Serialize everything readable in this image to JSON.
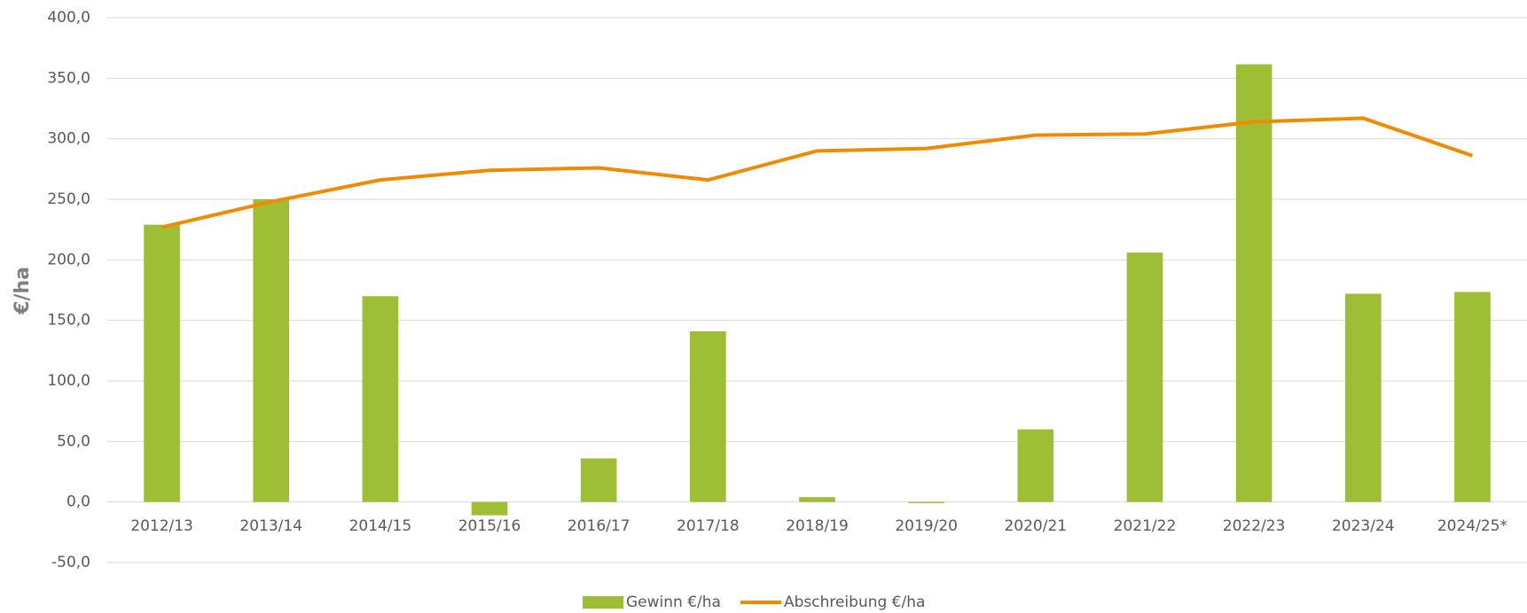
{
  "chart_data": {
    "type": "bar_line",
    "y_label": "€/ha",
    "categories": [
      "2012/13",
      "2013/14",
      "2014/15",
      "2015/16",
      "2016/17",
      "2017/18",
      "2018/19",
      "2019/20",
      "2020/21",
      "2021/22",
      "2022/23",
      "2023/24",
      "2024/25*"
    ],
    "series": [
      {
        "name": "Gewinn €/ha",
        "type": "bar",
        "color": "#9ebe36",
        "values": [
          229,
          250,
          170,
          -11,
          36,
          141,
          4,
          -1,
          60,
          206,
          361.5,
          172,
          173.5
        ]
      },
      {
        "name": "Abschreibung €/ha",
        "type": "line",
        "color": "#f08a00",
        "values": [
          227,
          248,
          266,
          274,
          276,
          266,
          290,
          292,
          303,
          304,
          314,
          317,
          286
        ]
      }
    ],
    "ylim": [
      -50,
      400
    ],
    "yticks": [
      {
        "value": -50,
        "label": "-50,0"
      },
      {
        "value": 0,
        "label": "0,0"
      },
      {
        "value": 50,
        "label": "50,0"
      },
      {
        "value": 100,
        "label": "100,0"
      },
      {
        "value": 150,
        "label": "150,0"
      },
      {
        "value": 200,
        "label": "200,0"
      },
      {
        "value": 250,
        "label": "250,0"
      },
      {
        "value": 300,
        "label": "300,0"
      },
      {
        "value": 350,
        "label": "350,0"
      },
      {
        "value": 400,
        "label": "400,0"
      }
    ],
    "grid": true,
    "legend": "bottom"
  }
}
